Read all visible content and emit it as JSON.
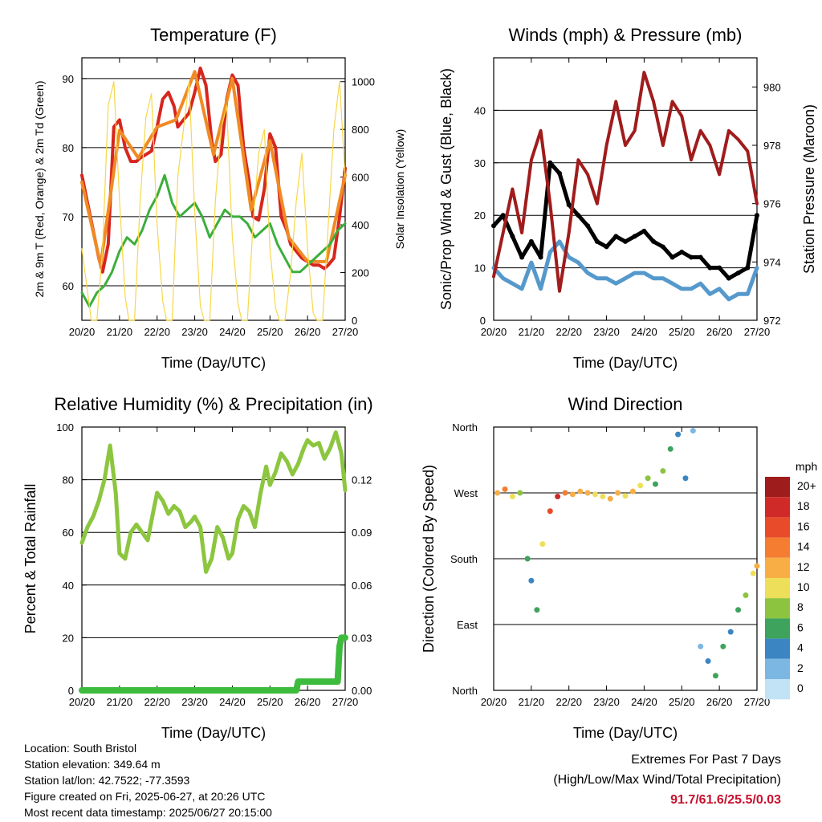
{
  "chart_data": [
    {
      "type": "line",
      "title": "Temperature (F)",
      "xlabel": "Time (Day/UTC)",
      "ylabel": "2m & 9m T (Red, Orange) & 2m Td (Green)",
      "ylabel_right": "Solar Insolation (Yellow)",
      "x_ticks": [
        "20/20",
        "21/20",
        "22/20",
        "23/20",
        "24/20",
        "25/20",
        "26/20",
        "27/20"
      ],
      "ylim": [
        55,
        93
      ],
      "y_ticks": [
        60,
        70,
        80,
        90
      ],
      "ylim_right": [
        0,
        1100
      ],
      "y_ticks_right": [
        0,
        200,
        400,
        600,
        800,
        1000
      ],
      "grid": true,
      "series": [
        {
          "name": "2m T",
          "color": "#d7261e",
          "x": [
            0,
            0.15,
            0.3,
            0.45,
            0.55,
            0.7,
            0.85,
            1,
            1.15,
            1.3,
            1.45,
            1.55,
            1.7,
            1.85,
            2,
            2.15,
            2.3,
            2.45,
            2.55,
            2.7,
            2.85,
            3,
            3.15,
            3.3,
            3.45,
            3.55,
            3.7,
            3.85,
            4,
            4.15,
            4.3,
            4.45,
            4.55,
            4.7,
            4.85,
            5,
            5.15,
            5.3,
            5.45,
            5.55,
            5.7,
            5.85,
            6,
            6.15,
            6.3,
            6.45,
            6.55,
            6.7,
            6.85,
            7
          ],
          "y": [
            76,
            72,
            68,
            64,
            62,
            66,
            83,
            84,
            80,
            78,
            78,
            78.5,
            79,
            79.5,
            83,
            87,
            88,
            86,
            83,
            84,
            85,
            88,
            91.5,
            89,
            81,
            78,
            79,
            87,
            90.5,
            89,
            80,
            75,
            70,
            69.5,
            74,
            82,
            80,
            70,
            68,
            66,
            65,
            64,
            63.5,
            63,
            63,
            62.5,
            63,
            64,
            70,
            77
          ]
        },
        {
          "name": "9m T",
          "color": "#f08a24",
          "x": [
            0,
            0.5,
            1,
            1.5,
            2,
            2.5,
            3,
            3.5,
            4,
            4.5,
            5,
            5.5,
            6,
            6.5,
            7
          ],
          "y": [
            75,
            63,
            82.5,
            78.5,
            83,
            84,
            91,
            79,
            90,
            71,
            81,
            67,
            63.5,
            63.5,
            76
          ]
        },
        {
          "name": "2m Td",
          "color": "#3cae3c",
          "x": [
            0,
            0.2,
            0.4,
            0.6,
            0.8,
            1,
            1.2,
            1.4,
            1.6,
            1.8,
            2,
            2.2,
            2.4,
            2.6,
            2.8,
            3,
            3.2,
            3.4,
            3.6,
            3.8,
            4,
            4.2,
            4.4,
            4.6,
            4.8,
            5,
            5.2,
            5.4,
            5.6,
            5.8,
            6,
            6.2,
            6.4,
            6.6,
            6.8,
            7
          ],
          "y": [
            59,
            57,
            59,
            60,
            62,
            65,
            67,
            66,
            68,
            71,
            73,
            76,
            72,
            70,
            71,
            72,
            70,
            67,
            69,
            71,
            70,
            70,
            69,
            67,
            68,
            69,
            66,
            64,
            62,
            62,
            63,
            64,
            65,
            66,
            68,
            69
          ]
        },
        {
          "name": "Solar Insolation",
          "axis": "right",
          "color": "#f7d74a",
          "x": [
            0,
            0.15,
            0.25,
            0.4,
            0.55,
            0.7,
            0.85,
            1,
            1.15,
            1.25,
            1.4,
            1.55,
            1.7,
            1.85,
            2,
            2.15,
            2.25,
            2.4,
            2.55,
            2.7,
            2.85,
            3,
            3.15,
            3.25,
            3.4,
            3.55,
            3.7,
            3.85,
            4,
            4.15,
            4.25,
            4.4,
            4.55,
            4.7,
            4.85,
            5,
            5.15,
            5.25,
            5.4,
            5.55,
            5.7,
            5.85,
            6,
            6.15,
            6.25,
            6.4,
            6.55,
            6.7,
            6.85,
            7
          ],
          "y": [
            300,
            120,
            0,
            0,
            300,
            900,
            1000,
            500,
            100,
            0,
            0,
            500,
            850,
            950,
            400,
            80,
            0,
            0,
            600,
            800,
            1000,
            450,
            60,
            0,
            0,
            500,
            800,
            900,
            350,
            70,
            0,
            0,
            400,
            700,
            800,
            300,
            50,
            0,
            0,
            200,
            500,
            700,
            300,
            30,
            0,
            0,
            400,
            800,
            1000,
            600
          ]
        }
      ]
    },
    {
      "type": "line",
      "title": "Winds (mph) & Pressure (mb)",
      "xlabel": "Time (Day/UTC)",
      "ylabel": "Sonic/Prop Wind & Gust (Blue, Black)",
      "ylabel_right": "Station Pressure (Maroon)",
      "x_ticks": [
        "20/20",
        "21/20",
        "22/20",
        "23/20",
        "24/20",
        "25/20",
        "26/20",
        "27/20"
      ],
      "ylim": [
        0,
        50
      ],
      "y_ticks": [
        0,
        10,
        20,
        30,
        40
      ],
      "ylim_right": [
        972,
        981
      ],
      "y_ticks_right": [
        972,
        974,
        976,
        978,
        980
      ],
      "grid": true,
      "series": [
        {
          "name": "Wind",
          "color": "#5599cc",
          "x": [
            0,
            0.25,
            0.5,
            0.75,
            1,
            1.25,
            1.5,
            1.75,
            2,
            2.25,
            2.5,
            2.75,
            3,
            3.25,
            3.5,
            3.75,
            4,
            4.25,
            4.5,
            4.75,
            5,
            5.25,
            5.5,
            5.75,
            6,
            6.25,
            6.5,
            6.75,
            7
          ],
          "y": [
            10,
            8,
            7,
            6,
            11,
            6,
            13,
            15,
            12,
            11,
            9,
            8,
            8,
            7,
            8,
            9,
            9,
            8,
            8,
            7,
            6,
            6,
            7,
            5,
            6,
            4,
            5,
            5,
            10
          ]
        },
        {
          "name": "Gust",
          "color": "#000000",
          "x": [
            0,
            0.25,
            0.5,
            0.75,
            1,
            1.25,
            1.5,
            1.75,
            2,
            2.25,
            2.5,
            2.75,
            3,
            3.25,
            3.5,
            3.75,
            4,
            4.25,
            4.5,
            4.75,
            5,
            5.25,
            5.5,
            5.75,
            6,
            6.25,
            6.5,
            6.75,
            7
          ],
          "y": [
            18,
            20,
            16,
            12,
            15,
            12,
            30,
            28,
            22,
            20,
            18,
            15,
            14,
            16,
            15,
            16,
            17,
            15,
            14,
            12,
            13,
            12,
            12,
            10,
            10,
            8,
            9,
            10,
            20
          ]
        },
        {
          "name": "Station Pressure",
          "axis": "right",
          "color": "#a01c1c",
          "x": [
            0,
            0.25,
            0.5,
            0.75,
            1,
            1.25,
            1.5,
            1.75,
            2,
            2.25,
            2.5,
            2.75,
            3,
            3.25,
            3.5,
            3.75,
            4,
            4.25,
            4.5,
            4.75,
            5,
            5.25,
            5.5,
            5.75,
            6,
            6.25,
            6.5,
            6.75,
            7
          ],
          "y": [
            973.5,
            975,
            976.5,
            975,
            977.5,
            978.5,
            976,
            973,
            975,
            977.5,
            977,
            976,
            978,
            979.5,
            978,
            978.5,
            980.5,
            979.5,
            978,
            979.5,
            979,
            977.5,
            978.5,
            978,
            977,
            978.5,
            978.2,
            977.8,
            976
          ]
        }
      ]
    },
    {
      "type": "line",
      "title": "Relative Humidity (%) & Precipitation (in)",
      "xlabel": "Time (Day/UTC)",
      "ylabel": "Percent & Total Rainfall",
      "x_ticks": [
        "20/20",
        "21/20",
        "22/20",
        "23/20",
        "24/20",
        "25/20",
        "26/20",
        "27/20"
      ],
      "ylim": [
        0,
        100
      ],
      "y_ticks": [
        0,
        20,
        40,
        60,
        80,
        100
      ],
      "ylim_right": [
        0,
        0.15
      ],
      "y_ticks_right": [
        "0.00",
        "0.03",
        "0.06",
        "0.09",
        "0.12"
      ],
      "grid": true,
      "series": [
        {
          "name": "Relative Humidity",
          "color": "#8cc63f",
          "x": [
            0,
            0.15,
            0.3,
            0.45,
            0.6,
            0.75,
            0.9,
            1,
            1.15,
            1.3,
            1.45,
            1.6,
            1.75,
            1.9,
            2,
            2.15,
            2.3,
            2.45,
            2.6,
            2.75,
            2.9,
            3,
            3.15,
            3.3,
            3.45,
            3.6,
            3.75,
            3.9,
            4,
            4.15,
            4.3,
            4.45,
            4.6,
            4.75,
            4.9,
            5,
            5.15,
            5.3,
            5.45,
            5.6,
            5.75,
            5.9,
            6,
            6.15,
            6.3,
            6.45,
            6.6,
            6.75,
            6.9,
            7
          ],
          "y": [
            56,
            62,
            66,
            72,
            80,
            93,
            75,
            52,
            50,
            60,
            63,
            60,
            57,
            68,
            75,
            72,
            67,
            70,
            68,
            62,
            64,
            66,
            62,
            45,
            50,
            62,
            58,
            50,
            52,
            65,
            70,
            68,
            62,
            75,
            85,
            78,
            83,
            90,
            87,
            82,
            86,
            92,
            95,
            93,
            94,
            88,
            92,
            98,
            90,
            76
          ]
        },
        {
          "name": "Total Precipitation",
          "axis": "right",
          "color": "#3dbb3d",
          "x": [
            0,
            5.7,
            5.75,
            6.8,
            6.85,
            6.9,
            7
          ],
          "y": [
            0,
            0,
            0.005,
            0.005,
            0.025,
            0.03,
            0.03
          ]
        }
      ]
    },
    {
      "type": "scatter",
      "title": "Wind Direction",
      "xlabel": "Time (Day/UTC)",
      "ylabel": "Direction (Colored By Speed)",
      "x_ticks": [
        "20/20",
        "21/20",
        "22/20",
        "23/20",
        "24/20",
        "25/20",
        "26/20",
        "27/20"
      ],
      "y_categories": [
        "North",
        "East",
        "South",
        "West",
        "North"
      ],
      "ylim": [
        0,
        360
      ],
      "grid": true,
      "legend": {
        "title": "mph",
        "labels": [
          "20+",
          "18",
          "16",
          "14",
          "12",
          "10",
          "8",
          "6",
          "4",
          "2",
          "0"
        ],
        "colors": [
          "#9e1c1c",
          "#cf2a27",
          "#e84b2a",
          "#f47d31",
          "#f8ae45",
          "#eddf5a",
          "#8cc43f",
          "#3da35d",
          "#3b86c2",
          "#7cb7e3",
          "#c1e3f5"
        ]
      },
      "series": [
        {
          "name": "Direction",
          "x": [
            0.1,
            0.3,
            0.5,
            0.7,
            0.9,
            1.0,
            1.15,
            1.3,
            1.5,
            1.7,
            1.9,
            2.1,
            2.3,
            2.5,
            2.7,
            2.9,
            3.1,
            3.3,
            3.5,
            3.7,
            3.9,
            4.1,
            4.3,
            4.5,
            4.7,
            4.9,
            5.1,
            5.3,
            5.5,
            5.7,
            5.9,
            6.1,
            6.3,
            6.5,
            6.7,
            6.9,
            7
          ],
          "y": [
            270,
            275,
            265,
            270,
            180,
            150,
            110,
            200,
            245,
            265,
            270,
            268,
            272,
            270,
            268,
            265,
            262,
            270,
            266,
            272,
            280,
            290,
            282,
            300,
            330,
            350,
            290,
            355,
            60,
            40,
            20,
            60,
            80,
            110,
            130,
            160,
            170
          ],
          "speed": [
            12,
            14,
            10,
            8,
            6,
            4,
            6,
            10,
            16,
            18,
            14,
            12,
            13,
            12,
            11,
            10,
            12,
            13,
            11,
            12,
            10,
            8,
            7,
            8,
            6,
            5,
            4,
            3,
            3,
            4,
            6,
            7,
            5,
            6,
            8,
            10,
            12
          ]
        }
      ]
    }
  ],
  "footer": {
    "location": "Location: South Bristol",
    "elevation": "Station elevation: 349.64 m",
    "latlon": "Station lat/lon: 42.7522; -77.3593",
    "created": "Figure created on Fri, 2025-06-27, at 20:26 UTC",
    "timestamp": "Most recent data timestamp: 2025/06/27 20:15:00"
  },
  "extremes": {
    "title": "Extremes For Past 7 Days",
    "subtitle": "(High/Low/Max Wind/Total Precipitation)",
    "values": "91.7/61.6/25.5/0.03"
  }
}
